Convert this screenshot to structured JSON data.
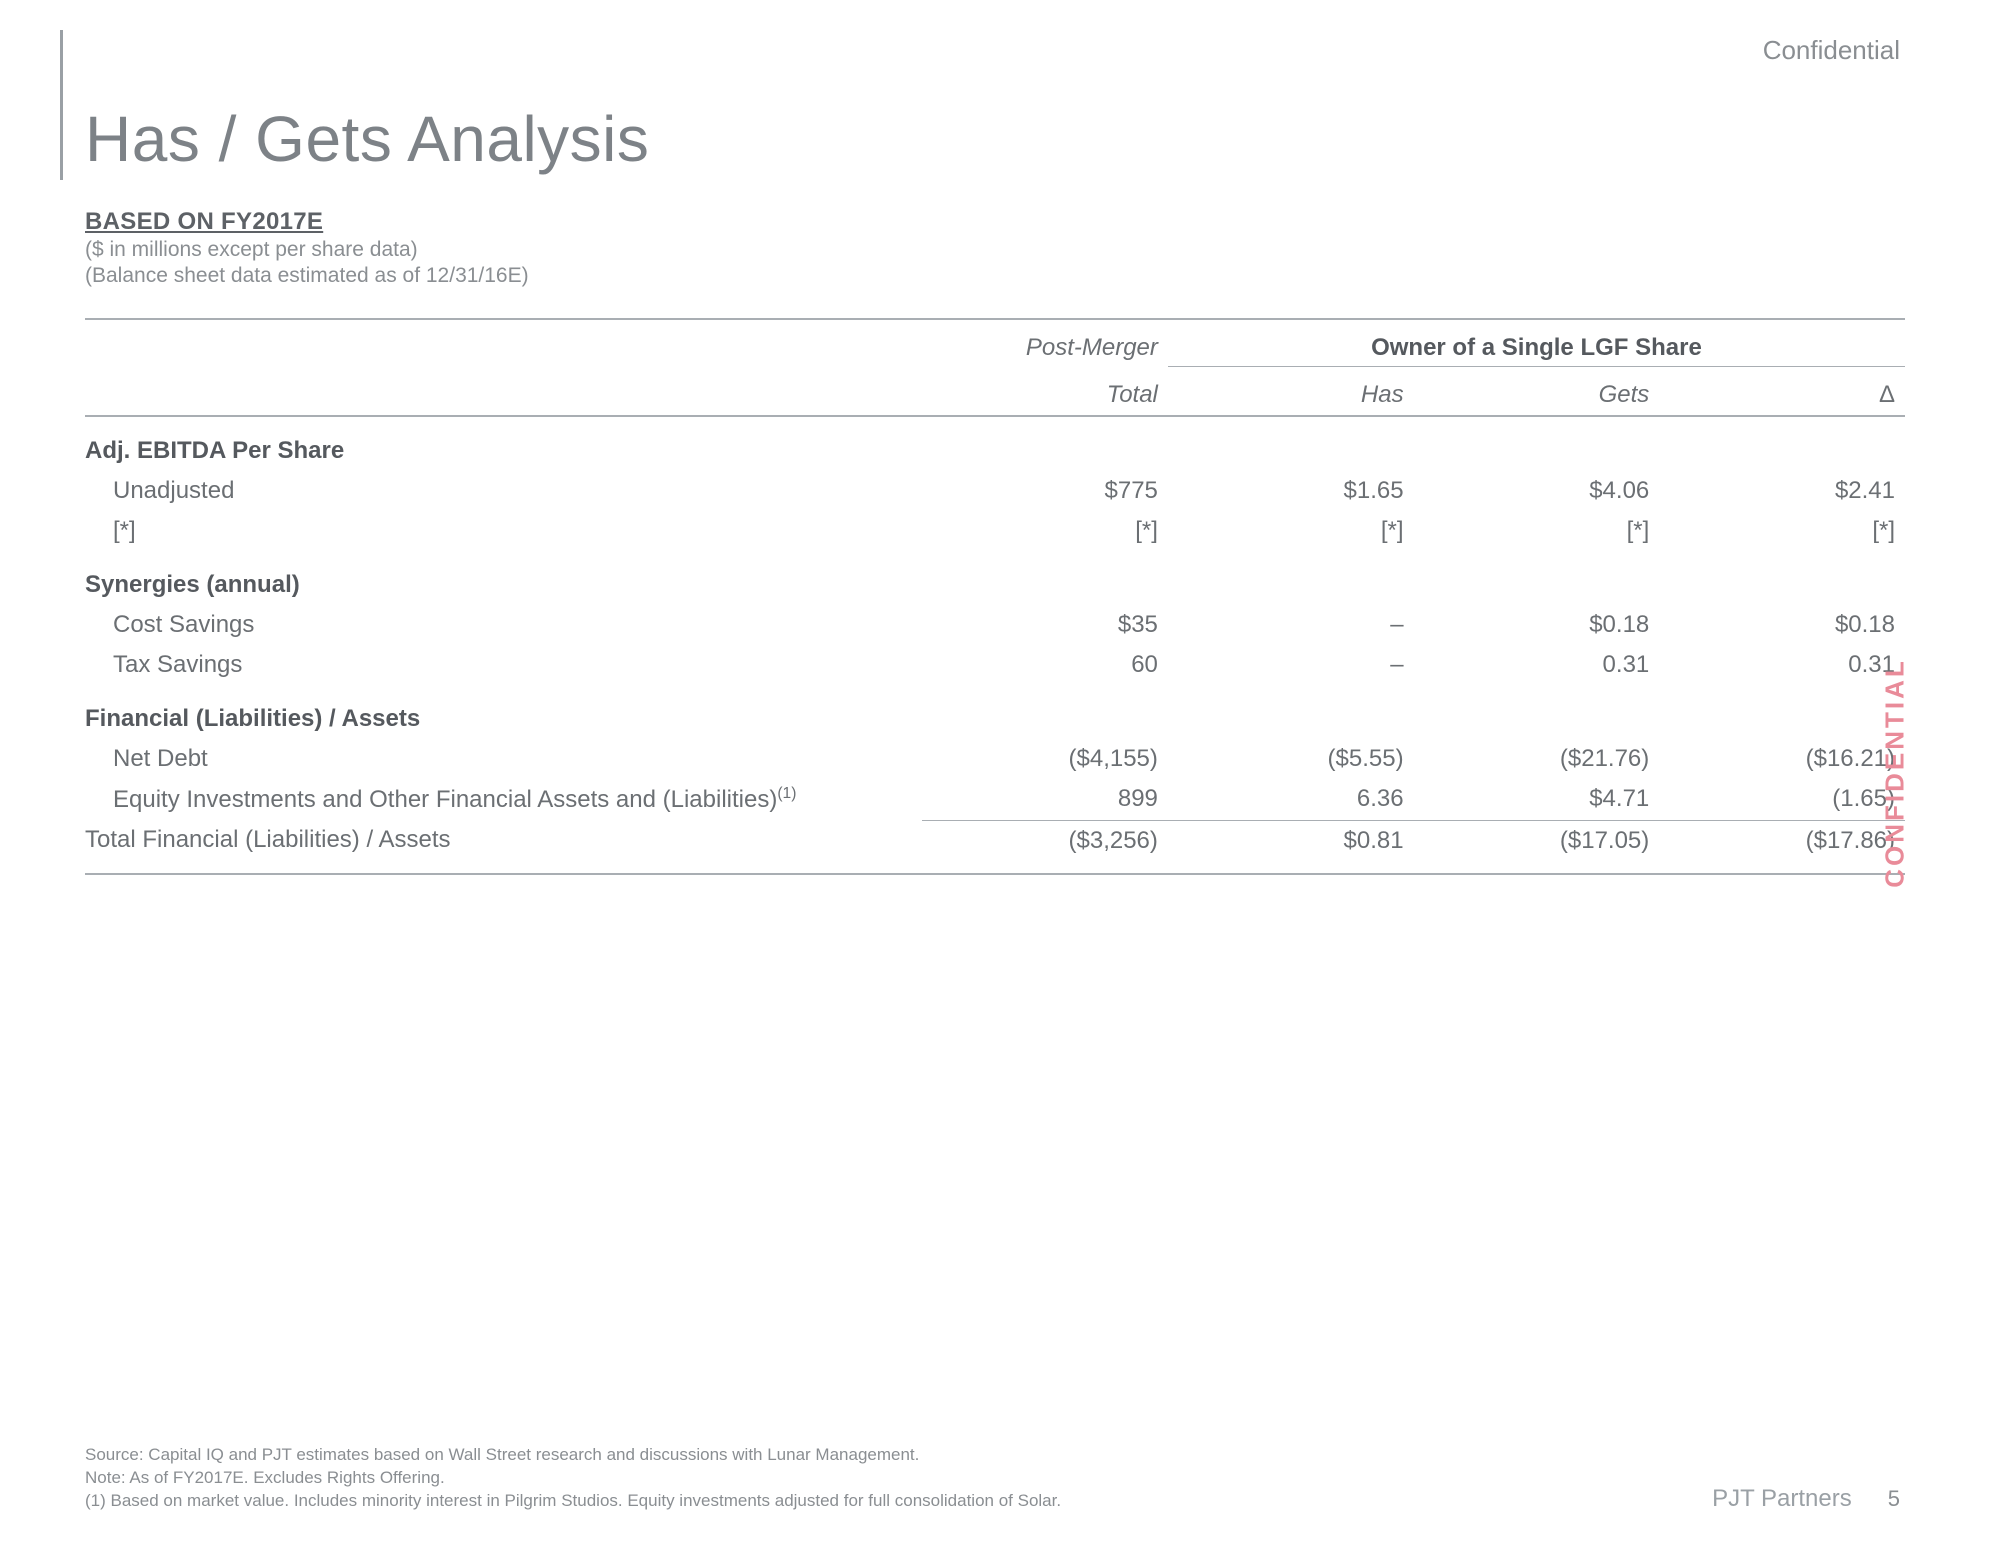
{
  "watermarks": {
    "top_right": "Confidential",
    "side": "CONFIDENTIAL"
  },
  "title": "Has / Gets Analysis",
  "subtitle": {
    "heading": "BASED ON FY2017E",
    "line1": "($ in millions except per share data)",
    "line2": "(Balance sheet data estimated as of 12/31/16E)"
  },
  "table": {
    "header": {
      "post_merger_top": "Post-Merger",
      "post_merger_sub": "Total",
      "owner_group": "Owner of a Single LGF Share",
      "has": "Has",
      "gets": "Gets",
      "delta": "Δ"
    },
    "sections": [
      {
        "title": "Adj. EBITDA Per Share",
        "rows": [
          {
            "label": "Unadjusted",
            "pm": "$775",
            "has": "$1.65",
            "gets": "$4.06",
            "delta": "$2.41"
          },
          {
            "label": "[*]",
            "pm": "[*]",
            "has": "[*]",
            "gets": "[*]",
            "delta": "[*]"
          }
        ]
      },
      {
        "title": "Synergies (annual)",
        "rows": [
          {
            "label": "Cost Savings",
            "pm": "$35",
            "has": "–",
            "gets": "$0.18",
            "delta": "$0.18"
          },
          {
            "label": "Tax Savings",
            "pm": "60",
            "has": "–",
            "gets": "0.31",
            "delta": "0.31"
          }
        ]
      },
      {
        "title": "Financial (Liabilities) / Assets",
        "rows": [
          {
            "label": "Net Debt",
            "pm": "($4,155)",
            "has": "($5.55)",
            "gets": "($21.76)",
            "delta": "($16.21)"
          },
          {
            "label": "Equity Investments and Other Financial Assets and (Liabilities)",
            "sup": "(1)",
            "pm": "899",
            "has": "6.36",
            "gets": "$4.71",
            "delta": "(1.65)",
            "underline": true
          }
        ],
        "total": {
          "label": "Total Financial (Liabilities) / Assets",
          "pm": "($3,256)",
          "has": "$0.81",
          "gets": "($17.05)",
          "delta": "($17.86)"
        }
      }
    ]
  },
  "footer": {
    "source": "Source: Capital IQ and PJT estimates based on Wall Street research and discussions with Lunar Management.",
    "note": "Note: As of FY2017E. Excludes Rights Offering.",
    "fn1": "(1)  Based on market value. Includes minority interest in Pilgrim Studios. Equity investments adjusted for full consolidation of Solar.",
    "brand": "PJT Partners",
    "page_no": "5"
  }
}
